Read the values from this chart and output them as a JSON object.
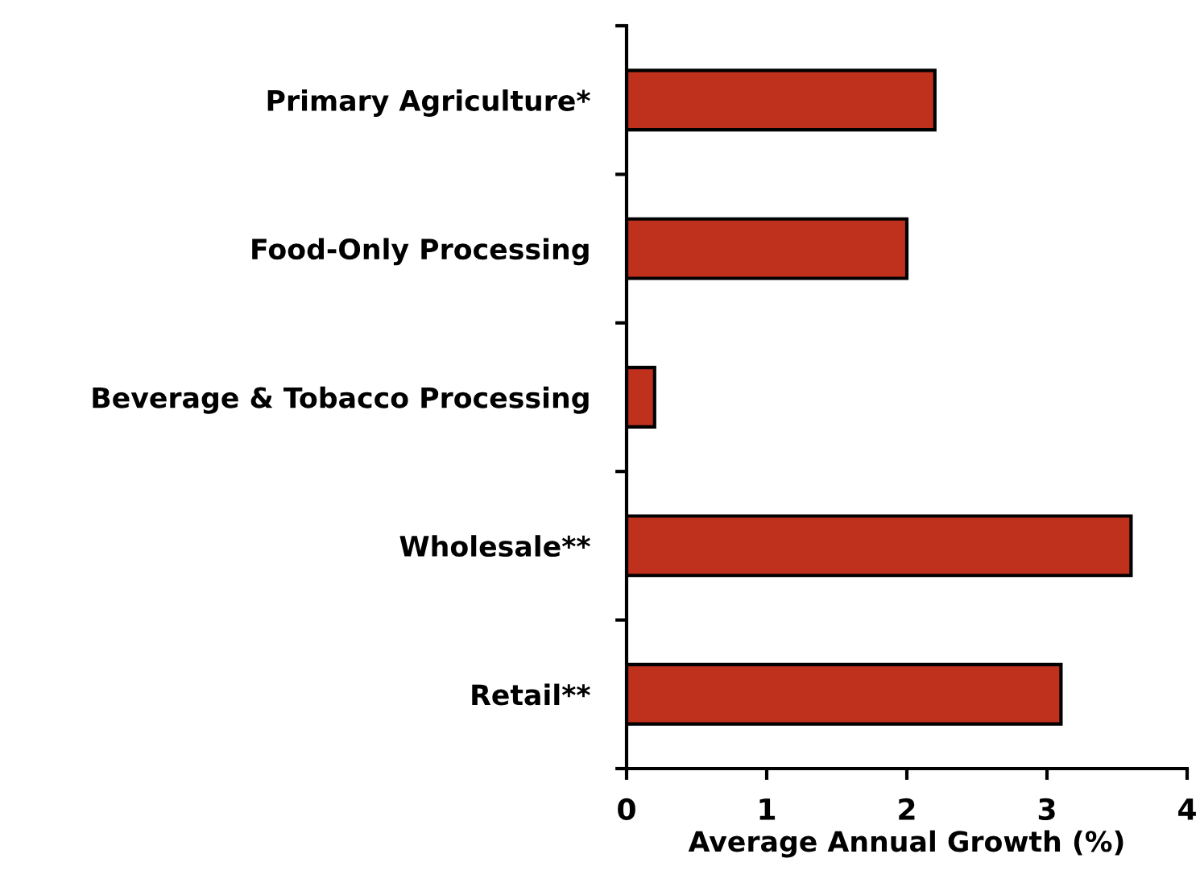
{
  "chart_data": {
    "type": "bar",
    "orientation": "horizontal",
    "xlabel": "Average Annual Growth (%)",
    "categories": [
      "Primary Agriculture*",
      "Food-Only Processing",
      "Beverage & Tobacco Processing",
      "Wholesale**",
      "Retail**"
    ],
    "values": [
      2.2,
      2.0,
      0.2,
      3.6,
      3.1
    ],
    "color": "#bf311d",
    "xlim": [
      0,
      4
    ],
    "xticks": [
      0,
      1,
      2,
      3,
      4
    ],
    "grid": false,
    "legend": false
  }
}
